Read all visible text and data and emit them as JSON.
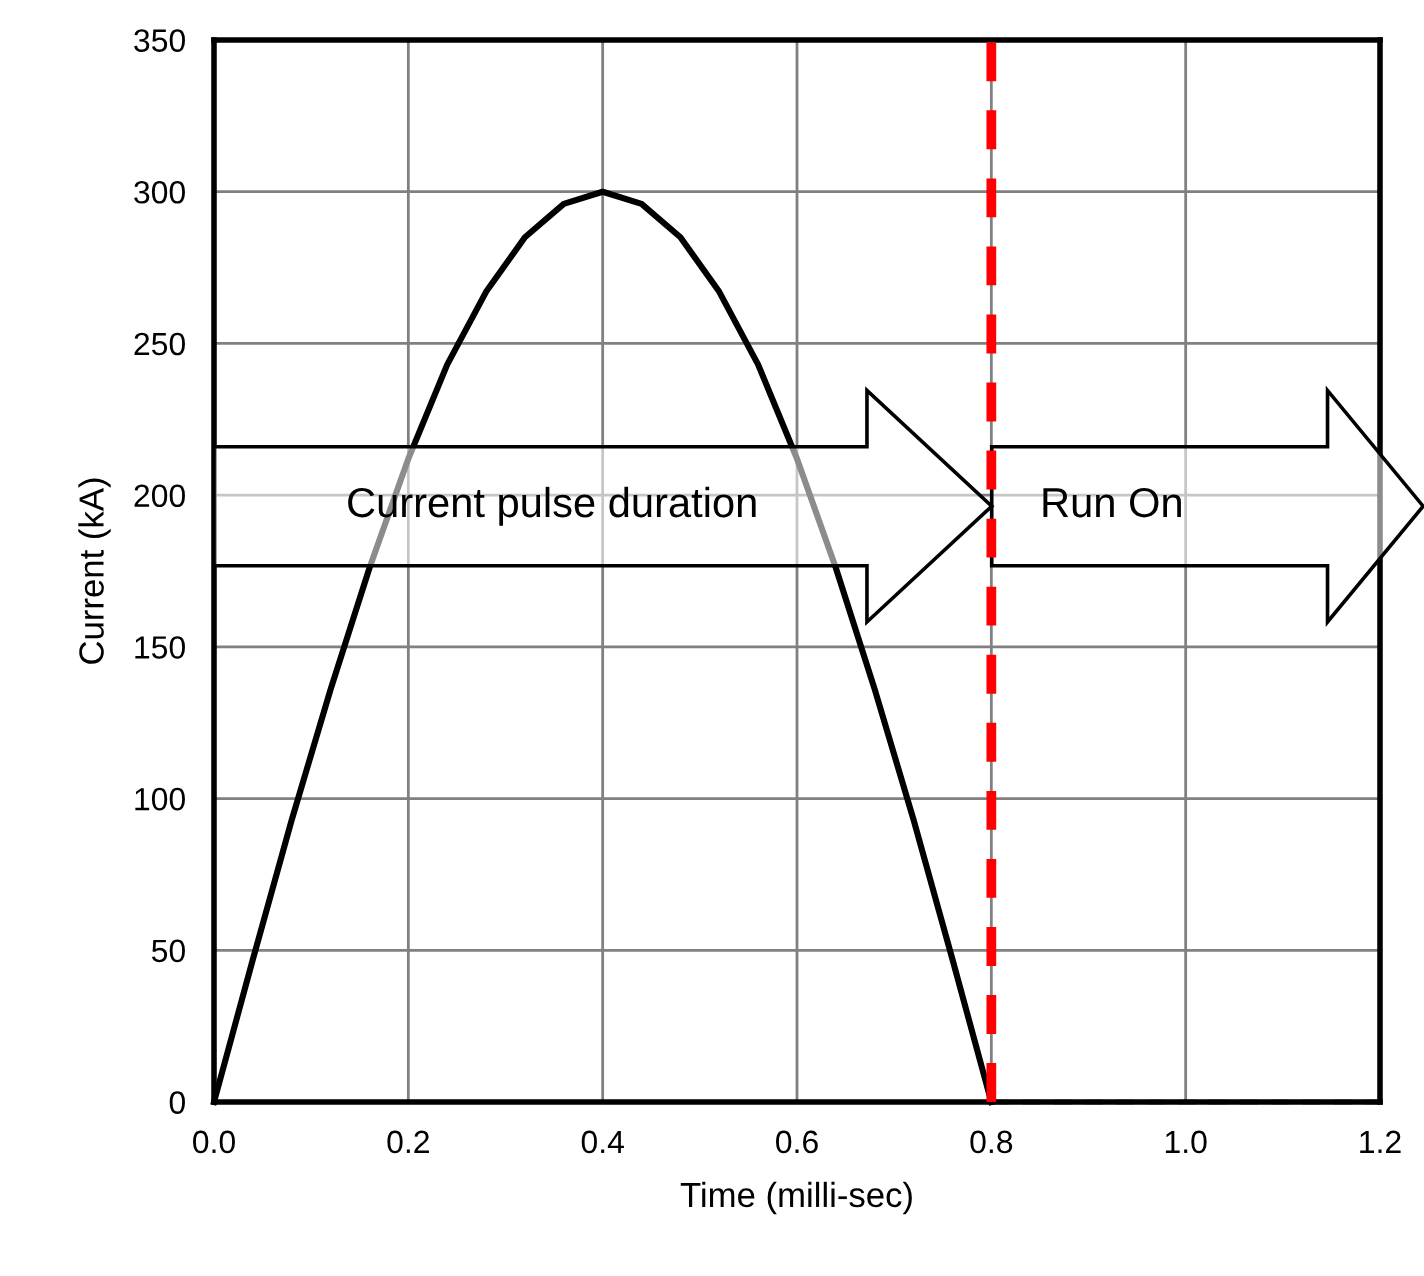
{
  "chart_data": {
    "type": "line",
    "xlabel": "Time (milli-sec)",
    "ylabel": "Current (kA)",
    "series": [
      {
        "color": "#000000",
        "line_style": "solid",
        "x": [
          0,
          0.04,
          0.08,
          0.12,
          0.16,
          0.2,
          0.24,
          0.28,
          0.32,
          0.36,
          0.4,
          0.44,
          0.48,
          0.52,
          0.56,
          0.6,
          0.64,
          0.68,
          0.72,
          0.76,
          0.8
        ],
        "values": [
          0,
          47,
          93,
          136,
          176,
          212,
          243,
          267,
          285,
          296,
          300,
          296,
          285,
          267,
          243,
          212,
          176,
          136,
          93,
          47,
          0
        ]
      },
      {
        "color": "#000000",
        "line_style": "dashed",
        "x": [
          0.8,
          1.2
        ],
        "values": [
          0,
          0
        ]
      }
    ],
    "xlim": [
      0,
      1.2
    ],
    "xticks": [
      {
        "value": 0,
        "label": "0.0"
      },
      {
        "value": 0.2,
        "label": "0.2"
      },
      {
        "value": 0.4,
        "label": "0.4"
      },
      {
        "value": 0.6,
        "label": "0.6"
      },
      {
        "value": 0.8,
        "label": "0.8"
      },
      {
        "value": 1.0,
        "label": "1.0"
      },
      {
        "value": 1.2,
        "label": "1.2"
      }
    ],
    "ylim": [
      0,
      350
    ],
    "yticks": [
      0,
      50,
      100,
      150,
      200,
      250,
      300,
      350
    ],
    "grid": true,
    "marker": "none",
    "ref_lines": [
      {
        "axis": "x",
        "value": 0.8,
        "label": null,
        "color": "#ff0000",
        "line_style": "dashed"
      }
    ],
    "annotations": [
      "Current pulse duration",
      "Run On"
    ]
  }
}
